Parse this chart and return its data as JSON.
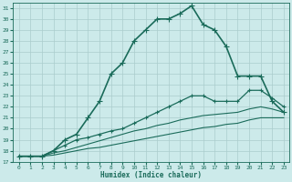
{
  "xlabel": "Humidex (Indice chaleur)",
  "ylabel": "",
  "xlim": [
    -0.5,
    23.5
  ],
  "ylim": [
    17,
    31.5
  ],
  "yticks": [
    17,
    18,
    19,
    20,
    21,
    22,
    23,
    24,
    25,
    26,
    27,
    28,
    29,
    30,
    31
  ],
  "xticks": [
    0,
    1,
    2,
    3,
    4,
    5,
    6,
    7,
    8,
    9,
    10,
    11,
    12,
    13,
    14,
    15,
    16,
    17,
    18,
    19,
    20,
    21,
    22,
    23
  ],
  "background_color": "#cceaea",
  "grid_color": "#aacccc",
  "line_color": "#1a6b5a",
  "lines": [
    {
      "x": [
        0,
        1,
        2,
        3,
        4,
        5,
        6,
        7,
        8,
        9,
        10,
        11,
        12,
        13,
        14,
        15,
        16,
        17,
        18,
        19,
        20,
        21,
        22,
        23
      ],
      "y": [
        17.5,
        17.5,
        17.5,
        18.0,
        19.0,
        19.5,
        21.0,
        22.5,
        25.0,
        26.0,
        28.0,
        29.0,
        30.0,
        30.0,
        30.5,
        31.2,
        29.5,
        29.0,
        27.5,
        24.8,
        24.8,
        24.8,
        22.5,
        21.5
      ],
      "marker": "+",
      "linewidth": 1.2,
      "markersize": 4
    },
    {
      "x": [
        0,
        1,
        2,
        3,
        4,
        5,
        6,
        7,
        8,
        9,
        10,
        11,
        12,
        13,
        14,
        15,
        16,
        17,
        18,
        19,
        20,
        21,
        22,
        23
      ],
      "y": [
        17.5,
        17.5,
        17.5,
        18.0,
        18.5,
        19.0,
        19.2,
        19.5,
        19.8,
        20.0,
        20.5,
        21.0,
        21.5,
        22.0,
        22.5,
        23.0,
        23.0,
        22.5,
        22.5,
        22.5,
        23.5,
        23.5,
        22.8,
        22.0
      ],
      "marker": "+",
      "linewidth": 0.9,
      "markersize": 3
    },
    {
      "x": [
        0,
        1,
        2,
        3,
        4,
        5,
        6,
        7,
        8,
        9,
        10,
        11,
        12,
        13,
        14,
        15,
        16,
        17,
        18,
        19,
        20,
        21,
        22,
        23
      ],
      "y": [
        17.5,
        17.5,
        17.5,
        17.8,
        18.0,
        18.3,
        18.6,
        18.9,
        19.2,
        19.5,
        19.8,
        20.0,
        20.3,
        20.5,
        20.8,
        21.0,
        21.2,
        21.3,
        21.4,
        21.5,
        21.8,
        22.0,
        21.8,
        21.5
      ],
      "marker": null,
      "linewidth": 0.8,
      "markersize": 0
    },
    {
      "x": [
        0,
        1,
        2,
        3,
        4,
        5,
        6,
        7,
        8,
        9,
        10,
        11,
        12,
        13,
        14,
        15,
        16,
        17,
        18,
        19,
        20,
        21,
        22,
        23
      ],
      "y": [
        17.5,
        17.5,
        17.5,
        17.6,
        17.8,
        18.0,
        18.2,
        18.3,
        18.5,
        18.7,
        18.9,
        19.1,
        19.3,
        19.5,
        19.7,
        19.9,
        20.1,
        20.2,
        20.4,
        20.5,
        20.8,
        21.0,
        21.0,
        21.0
      ],
      "marker": null,
      "linewidth": 0.8,
      "markersize": 0
    }
  ]
}
